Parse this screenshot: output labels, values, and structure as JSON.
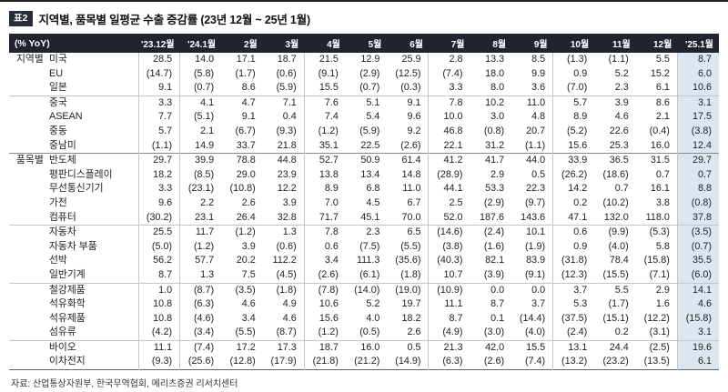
{
  "title": {
    "badge": "표2",
    "text": "지역별, 품목별 일평균 수출 증감률 (23년 12월 ~ 25년 1월)"
  },
  "table": {
    "unit_header": "(% YoY)",
    "columns": [
      "'23.12월",
      "'24.1월",
      "2월",
      "3월",
      "4월",
      "5월",
      "6월",
      "7월",
      "8월",
      "9월",
      "10월",
      "11월",
      "12월",
      "'25.1월"
    ],
    "header_bg": "#20242f",
    "highlight_color": "#dce6f2",
    "groups": [
      {
        "label": "지역별",
        "subgroups": [
          {
            "rows": [
              {
                "name": "미국",
                "values": [
                  "28.5",
                  "14.0",
                  "17.1",
                  "18.7",
                  "21.5",
                  "12.9",
                  "25.9",
                  "2.8",
                  "13.3",
                  "8.5",
                  "(1.3)",
                  "(1.1)",
                  "5.5",
                  "8.7"
                ]
              },
              {
                "name": "EU",
                "values": [
                  "(14.7)",
                  "(5.8)",
                  "(1.7)",
                  "(0.6)",
                  "(9.1)",
                  "(2.9)",
                  "(12.5)",
                  "(7.4)",
                  "18.0",
                  "9.9",
                  "0.9",
                  "5.2",
                  "15.2",
                  "6.0"
                ]
              },
              {
                "name": "일본",
                "values": [
                  "9.1",
                  "(0.7)",
                  "8.6",
                  "(5.9)",
                  "15.5",
                  "(0.7)",
                  "(0.3)",
                  "3.3",
                  "8.0",
                  "3.6",
                  "(7.0)",
                  "2.3",
                  "6.1",
                  "10.6"
                ]
              }
            ]
          },
          {
            "rows": [
              {
                "name": "중국",
                "values": [
                  "3.3",
                  "4.1",
                  "4.7",
                  "7.1",
                  "7.6",
                  "5.1",
                  "9.1",
                  "7.8",
                  "10.2",
                  "11.0",
                  "5.7",
                  "3.9",
                  "8.6",
                  "3.1"
                ]
              },
              {
                "name": "ASEAN",
                "values": [
                  "7.7",
                  "(5.1)",
                  "9.1",
                  "0.4",
                  "7.4",
                  "5.4",
                  "9.6",
                  "10.0",
                  "3.0",
                  "4.8",
                  "8.9",
                  "4.6",
                  "2.1",
                  "17.5"
                ]
              },
              {
                "name": "중동",
                "values": [
                  "5.7",
                  "2.1",
                  "(6.7)",
                  "(9.3)",
                  "(1.2)",
                  "(5.9)",
                  "9.2",
                  "46.8",
                  "(0.8)",
                  "20.7",
                  "(5.2)",
                  "22.6",
                  "(0.4)",
                  "(3.8)"
                ]
              },
              {
                "name": "중남미",
                "values": [
                  "(1.1)",
                  "14.9",
                  "33.7",
                  "21.8",
                  "35.1",
                  "22.5",
                  "(2.6)",
                  "22.1",
                  "31.2",
                  "(1.1)",
                  "15.6",
                  "25.3",
                  "16.0",
                  "12.4"
                ]
              }
            ]
          }
        ]
      },
      {
        "label": "품목별",
        "subgroups": [
          {
            "rows": [
              {
                "name": "반도체",
                "values": [
                  "29.7",
                  "39.9",
                  "78.8",
                  "44.8",
                  "52.7",
                  "50.9",
                  "61.4",
                  "41.2",
                  "41.7",
                  "44.0",
                  "33.9",
                  "36.5",
                  "31.5",
                  "29.7"
                ]
              },
              {
                "name": "평판디스플레이",
                "values": [
                  "18.2",
                  "(8.5)",
                  "29.0",
                  "23.9",
                  "13.8",
                  "13.4",
                  "14.8",
                  "(28.9)",
                  "2.9",
                  "0.5",
                  "(26.2)",
                  "(18.6)",
                  "0.7",
                  "0.7"
                ]
              },
              {
                "name": "무선통신기기",
                "values": [
                  "3.3",
                  "(23.1)",
                  "(10.8)",
                  "12.2",
                  "8.9",
                  "6.8",
                  "11.0",
                  "44.1",
                  "53.3",
                  "22.3",
                  "14.2",
                  "0.7",
                  "16.1",
                  "8.8"
                ]
              },
              {
                "name": "가전",
                "values": [
                  "9.6",
                  "2.2",
                  "2.6",
                  "3.9",
                  "7.0",
                  "4.5",
                  "6.7",
                  "2.5",
                  "(2.9)",
                  "(9.7)",
                  "0.2",
                  "(10.2)",
                  "3.8",
                  "(0.8)"
                ]
              },
              {
                "name": "컴퓨터",
                "values": [
                  "(30.2)",
                  "23.1",
                  "26.4",
                  "32.8",
                  "71.7",
                  "45.1",
                  "70.0",
                  "52.0",
                  "187.6",
                  "143.6",
                  "47.1",
                  "132.0",
                  "118.0",
                  "37.8"
                ]
              }
            ]
          },
          {
            "rows": [
              {
                "name": "자동차",
                "values": [
                  "25.5",
                  "11.7",
                  "(1.2)",
                  "1.3",
                  "7.8",
                  "2.3",
                  "6.5",
                  "(14.6)",
                  "(2.4)",
                  "10.1",
                  "0.6",
                  "(9.9)",
                  "(5.3)",
                  "(3.5)"
                ]
              },
              {
                "name": "자동차 부품",
                "values": [
                  "(5.0)",
                  "(1.2)",
                  "3.9",
                  "(0.6)",
                  "0.6",
                  "(7.5)",
                  "(5.5)",
                  "(3.8)",
                  "(1.6)",
                  "(1.9)",
                  "0.9",
                  "(4.0)",
                  "5.8",
                  "(0.7)"
                ]
              },
              {
                "name": "선박",
                "values": [
                  "56.2",
                  "57.7",
                  "20.2",
                  "112.2",
                  "3.4",
                  "111.3",
                  "(35.6)",
                  "(40.3)",
                  "82.1",
                  "83.9",
                  "(31.8)",
                  "78.4",
                  "(15.8)",
                  "35.5"
                ]
              },
              {
                "name": "일반기계",
                "values": [
                  "8.7",
                  "1.3",
                  "7.5",
                  "(4.5)",
                  "(2.6)",
                  "(6.1)",
                  "(1.8)",
                  "10.7",
                  "(3.9)",
                  "(9.1)",
                  "(12.3)",
                  "(15.5)",
                  "(7.1)",
                  "(6.0)"
                ]
              }
            ]
          },
          {
            "rows": [
              {
                "name": "철강제품",
                "values": [
                  "1.0",
                  "(8.7)",
                  "(3.5)",
                  "(1.8)",
                  "(7.8)",
                  "(14.0)",
                  "(19.0)",
                  "(10.9)",
                  "0.0",
                  "0.0",
                  "3.7",
                  "5.5",
                  "2.9",
                  "14.1"
                ]
              },
              {
                "name": "석유화학",
                "values": [
                  "10.8",
                  "(6.3)",
                  "4.6",
                  "4.9",
                  "10.6",
                  "5.2",
                  "19.7",
                  "11.1",
                  "8.7",
                  "3.7",
                  "5.3",
                  "(1.7)",
                  "1.6",
                  "4.6"
                ]
              },
              {
                "name": "석유제품",
                "values": [
                  "10.8",
                  "(4.6)",
                  "3.4",
                  "4.6",
                  "15.6",
                  "4.0",
                  "18.2",
                  "8.7",
                  "0.1",
                  "(14.4)",
                  "(37.5)",
                  "(15.1)",
                  "(12.2)",
                  "(15.8)"
                ]
              },
              {
                "name": "섬유류",
                "values": [
                  "(4.2)",
                  "(3.4)",
                  "(5.5)",
                  "(8.7)",
                  "(1.2)",
                  "(0.5)",
                  "2.6",
                  "(4.9)",
                  "(3.0)",
                  "(4.0)",
                  "(2.4)",
                  "0.2",
                  "(3.1)",
                  "3.1"
                ]
              }
            ]
          },
          {
            "rows": [
              {
                "name": "바이오",
                "values": [
                  "11.1",
                  "(7.4)",
                  "17.2",
                  "17.3",
                  "18.7",
                  "16.0",
                  "0.5",
                  "21.3",
                  "42.0",
                  "15.5",
                  "13.1",
                  "24.4",
                  "(2.5)",
                  "19.6"
                ]
              },
              {
                "name": "이차전지",
                "values": [
                  "(9.3)",
                  "(25.6)",
                  "(12.8)",
                  "(17.9)",
                  "(21.8)",
                  "(21.2)",
                  "(14.9)",
                  "(6.3)",
                  "(2.6)",
                  "(7.4)",
                  "(13.2)",
                  "(23.2)",
                  "(13.5)",
                  "6.1"
                ]
              }
            ]
          }
        ]
      }
    ]
  },
  "footer": {
    "source": "자료: 산업통상자원부, 한국무역협회, 메리츠증권 리서치센터"
  }
}
